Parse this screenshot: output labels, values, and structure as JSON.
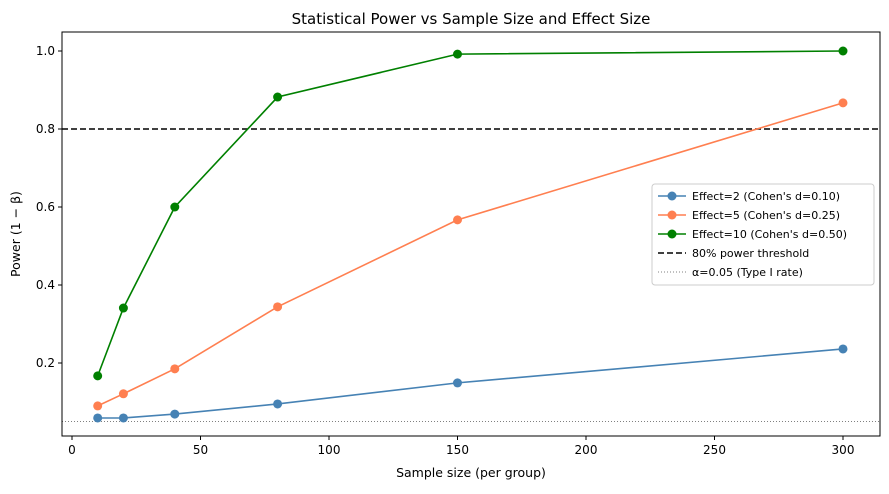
{
  "chart_data": {
    "type": "line",
    "title": "Statistical Power vs Sample Size and Effect Size",
    "xlabel": "Sample size (per group)",
    "ylabel": "Power (1 − β)",
    "xlim": [
      -4,
      315
    ],
    "ylim": [
      0.036,
      1.049
    ],
    "xticks": [
      0,
      50,
      100,
      150,
      200,
      250,
      300
    ],
    "yticks": [
      0.2,
      0.4,
      0.6,
      0.8,
      1.0
    ],
    "ytick_labels": [
      "0.2",
      "0.4",
      "0.6",
      "0.8",
      "1.0"
    ],
    "grid": false,
    "legend_placement": "center-right",
    "x": [
      10,
      20,
      40,
      80,
      150,
      300
    ],
    "series": [
      {
        "name": "Effect=2 (Cohen's d=0.10)",
        "color": "#4682b4",
        "values": [
          0.059,
          0.059,
          0.069,
          0.095,
          0.149,
          0.236
        ]
      },
      {
        "name": "Effect=5 (Cohen's d=0.25)",
        "color": "#ff7f50",
        "values": [
          0.09,
          0.121,
          0.185,
          0.344,
          0.567,
          0.867
        ]
      },
      {
        "name": "Effect=10 (Cohen's d=0.50)",
        "color": "#008000",
        "values": [
          0.167,
          0.341,
          0.6,
          0.882,
          0.992,
          1.0
        ]
      }
    ],
    "hlines": [
      {
        "name": "80% power threshold",
        "y": 0.8,
        "color": "#000000",
        "style": "dashed"
      },
      {
        "name": "α=0.05 (Type I rate)",
        "y": 0.05,
        "color": "#808080",
        "style": "dotted"
      }
    ]
  }
}
